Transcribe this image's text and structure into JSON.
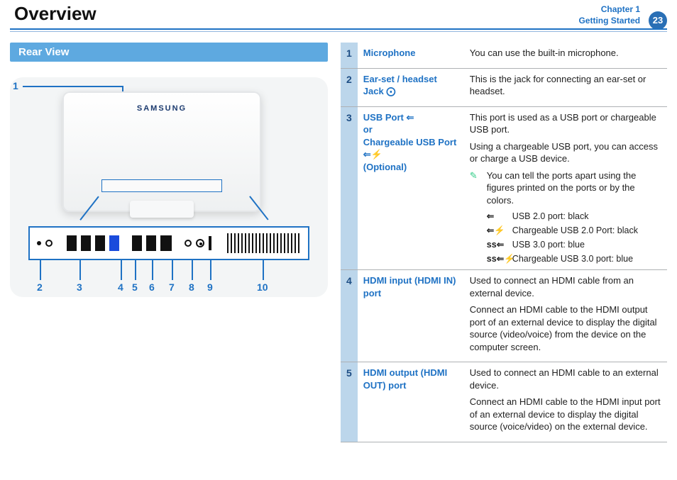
{
  "header": {
    "title": "Overview",
    "chapter_line": "Chapter 1",
    "subtitle": "Getting Started",
    "page_number": "23"
  },
  "left": {
    "section_title": "Rear View",
    "brand": "SAMSUNG",
    "callouts": [
      "1",
      "2",
      "3",
      "4",
      "5",
      "6",
      "7",
      "8",
      "9",
      "10"
    ]
  },
  "rows": [
    {
      "num": "1",
      "name": "Microphone",
      "desc_paras": [
        "You can use the built-in microphone."
      ]
    },
    {
      "num": "2",
      "name": "Ear-set / headset Jack ⨀",
      "desc_paras": [
        "This is the jack for connecting an ear-set or headset."
      ]
    },
    {
      "num": "3",
      "name": "USB Port ⇐\nor\nChargeable USB Port ⇐⚡\n(Optional)",
      "desc_paras": [
        "This port is used as a USB port or chargeable USB port.",
        "Using a chargeable USB port, you can access or charge a USB device."
      ],
      "note": "You can tell the ports apart using the figures printed on the ports or by the colors.",
      "usb_list": [
        {
          "icon": "⇐",
          "label": "USB 2.0 port: black"
        },
        {
          "icon": "⇐⚡",
          "label": "Chargeable USB 2.0 Port: black"
        },
        {
          "icon": "ss⇐",
          "label": "USB 3.0 port: blue"
        },
        {
          "icon": "ss⇐⚡",
          "label": "Chargeable USB 3.0 port: blue"
        }
      ]
    },
    {
      "num": "4",
      "name": "HDMI input (HDMI IN) port",
      "desc_paras": [
        "Used to connect an HDMI cable from an external device.",
        "Connect an HDMI cable to the HDMI output port of an external device to display the digital source (video/voice) from the device on the computer screen."
      ]
    },
    {
      "num": "5",
      "name": "HDMI output (HDMI OUT) port",
      "desc_paras": [
        "Used to connect an HDMI cable to an external device.",
        "Connect an HDMI cable to the HDMI input port of an external device to display the digital source (voice/video) on the external device."
      ]
    }
  ],
  "colors": {
    "accent": "#1f72c4",
    "bar": "#5ea9e0",
    "numcell": "#bcd6eb",
    "rowline": "#aeb1b4",
    "badge": "#2a6fb5"
  }
}
